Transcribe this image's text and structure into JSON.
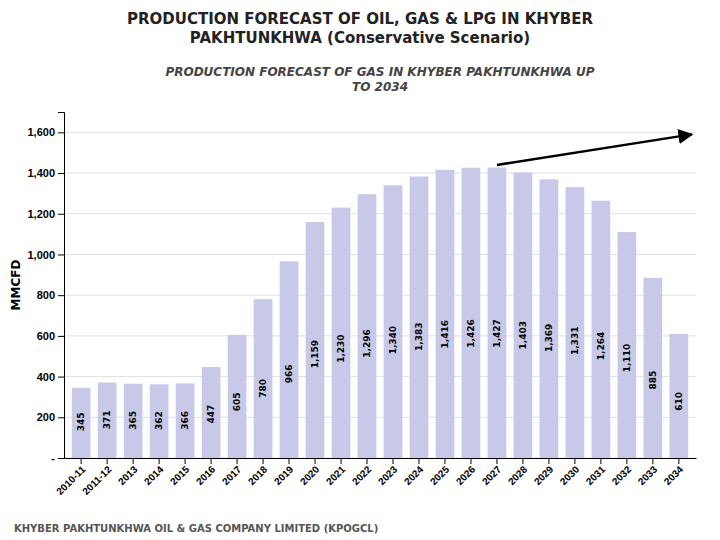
{
  "chart_data": {
    "type": "bar",
    "title": "PRODUCTION FORECAST OF OIL, GAS & LPG IN KHYBER\nPAKHTUNKHWA (Conservative Scenario)",
    "subtitle": "PRODUCTION FORECAST OF GAS IN KHYBER PAKHTUNKHWA UP\nTO 2034",
    "ylabel": "MMCFD",
    "footer": "KHYBER PAKHTUNKHWA OIL & GAS COMPANY LIMITED (KPOGCL)",
    "categories": [
      "2010-11",
      "2011-12",
      "2013",
      "2014",
      "2015",
      "2016",
      "2017",
      "2018",
      "2019",
      "2020",
      "2021",
      "2022",
      "2023",
      "2024",
      "2025",
      "2026",
      "2027",
      "2028",
      "2029",
      "2030",
      "2031",
      "2032",
      "2033",
      "2034"
    ],
    "values": [
      345,
      371,
      365,
      362,
      366,
      447,
      605,
      780,
      966,
      1159,
      1230,
      1296,
      1340,
      1383,
      1416,
      1426,
      1427,
      1403,
      1369,
      1331,
      1264,
      1110,
      885,
      610
    ],
    "value_labels": [
      "345",
      "371",
      "365",
      "362",
      "366",
      "447",
      "605",
      "780",
      "966",
      "1,159",
      "1,230",
      "1,296",
      "1,340",
      "1,383",
      "1,416",
      "1,426",
      "1,427",
      "1,403",
      "1,369",
      "1,331",
      "1,264",
      "1,110",
      "885",
      "610"
    ],
    "data_labels": true,
    "color": "#c8c8e8",
    "ylim": [
      0,
      1700
    ],
    "yticks": [
      {
        "value": 0,
        "label": "-"
      },
      200,
      400,
      600,
      800,
      {
        "value": 1000,
        "label": "1,000"
      },
      {
        "value": 1200,
        "label": "1,200"
      },
      {
        "value": 1400,
        "label": "1,400"
      },
      {
        "value": 1600,
        "label": "1,600"
      }
    ],
    "grid": true,
    "annotations": [
      {
        "type": "arrow",
        "x": [
          "2027",
          "2034"
        ],
        "y": [
          1440,
          1590
        ]
      }
    ]
  }
}
